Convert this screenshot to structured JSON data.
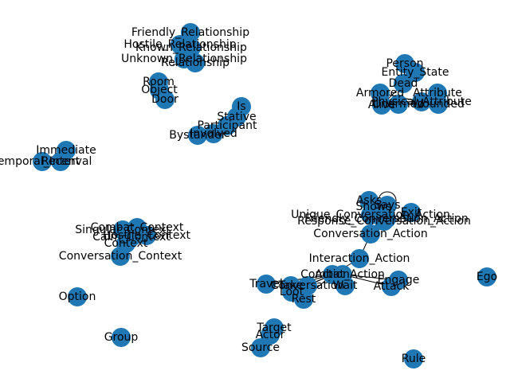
{
  "graph": {
    "node_color": "#1f77b4",
    "edge_color": "#000000",
    "nodes": [
      {
        "id": "friendly_relationship",
        "label": "Friendly_Relationship"
      },
      {
        "id": "hostile_relationship",
        "label": "Hostile_Relationship"
      },
      {
        "id": "known_relationship",
        "label": "Known_Relationship"
      },
      {
        "id": "unknown_relationship",
        "label": "Unknown_Relationship"
      },
      {
        "id": "relationship",
        "label": "Relationship"
      },
      {
        "id": "room",
        "label": "Room"
      },
      {
        "id": "object",
        "label": "Object"
      },
      {
        "id": "door",
        "label": "Door"
      },
      {
        "id": "is",
        "label": "Is"
      },
      {
        "id": "stative",
        "label": "Stative"
      },
      {
        "id": "participant",
        "label": "Participant"
      },
      {
        "id": "involved",
        "label": "Involved"
      },
      {
        "id": "bystander",
        "label": "Bystander"
      },
      {
        "id": "immediate",
        "label": "Immediate"
      },
      {
        "id": "temporal_interval",
        "label": "Temporal_Interval"
      },
      {
        "id": "recent",
        "label": "Recent"
      },
      {
        "id": "person",
        "label": "Person"
      },
      {
        "id": "entity_state",
        "label": "Entity_State"
      },
      {
        "id": "dead",
        "label": "Dead"
      },
      {
        "id": "armored",
        "label": "Armored"
      },
      {
        "id": "attribute",
        "label": "Attribute"
      },
      {
        "id": "physical_attribute",
        "label": "Physical_Attribute"
      },
      {
        "id": "alive",
        "label": "Alive"
      },
      {
        "id": "unarmed",
        "label": "Unarmed"
      },
      {
        "id": "wounded",
        "label": "Wounded"
      },
      {
        "id": "asks",
        "label": "Asks"
      },
      {
        "id": "says",
        "label": "Says"
      },
      {
        "id": "shows",
        "label": "Shows"
      },
      {
        "id": "exit",
        "label": "Exit"
      },
      {
        "id": "unique_conversation_action",
        "label": "Unique_Conversation_Action"
      },
      {
        "id": "friendly_conversation_action",
        "label": "Friendly_Conversation_Action"
      },
      {
        "id": "response_conversation_action",
        "label": "Response_Conversation_Action"
      },
      {
        "id": "conversation_action",
        "label": "Conversation_Action"
      },
      {
        "id": "interaction_action",
        "label": "Interaction_Action"
      },
      {
        "id": "combat_action",
        "label": "Combat_Action"
      },
      {
        "id": "action",
        "label": "Action"
      },
      {
        "id": "engage",
        "label": "Engage"
      },
      {
        "id": "attack",
        "label": "Attack"
      },
      {
        "id": "ego",
        "label": "Ego"
      },
      {
        "id": "singular_context",
        "label": "Singular_Context"
      },
      {
        "id": "combat_context",
        "label": "Combat_Context"
      },
      {
        "id": "hostile_context",
        "label": "Hostile_Context"
      },
      {
        "id": "calm_context",
        "label": "Calm_Context"
      },
      {
        "id": "context",
        "label": "Context"
      },
      {
        "id": "conversation_context",
        "label": "Conversation_Context"
      },
      {
        "id": "travel",
        "label": "Travel"
      },
      {
        "id": "take",
        "label": "Take"
      },
      {
        "id": "conversation",
        "label": "Conversation"
      },
      {
        "id": "loot",
        "label": "Loot"
      },
      {
        "id": "wait",
        "label": "Wait"
      },
      {
        "id": "rest",
        "label": "Rest"
      },
      {
        "id": "option",
        "label": "Option"
      },
      {
        "id": "group",
        "label": "Group"
      },
      {
        "id": "target",
        "label": "Target"
      },
      {
        "id": "actor",
        "label": "Actor"
      },
      {
        "id": "source",
        "label": "Source"
      },
      {
        "id": "rule",
        "label": "Rule"
      }
    ],
    "edges": [
      [
        "hostile_relationship",
        "relationship"
      ],
      [
        "friendly_relationship",
        "relationship"
      ],
      [
        "known_relationship",
        "relationship"
      ],
      [
        "unknown_relationship",
        "relationship"
      ],
      [
        "room",
        "object"
      ],
      [
        "door",
        "object"
      ],
      [
        "is",
        "stative"
      ],
      [
        "participant",
        "stative"
      ],
      [
        "involved",
        "participant"
      ],
      [
        "bystander",
        "participant"
      ],
      [
        "immediate",
        "temporal_interval"
      ],
      [
        "recent",
        "temporal_interval"
      ],
      [
        "person",
        "entity_state"
      ],
      [
        "dead",
        "entity_state"
      ],
      [
        "armored",
        "physical_attribute"
      ],
      [
        "attribute",
        "physical_attribute"
      ],
      [
        "alive",
        "entity_state"
      ],
      [
        "unarmed",
        "physical_attribute"
      ],
      [
        "wounded",
        "physical_attribute"
      ],
      [
        "asks",
        "conversation_action"
      ],
      [
        "says",
        "conversation_action"
      ],
      [
        "shows",
        "conversation_action"
      ],
      [
        "exit",
        "conversation_action"
      ],
      [
        "unique_conversation_action",
        "conversation_action"
      ],
      [
        "friendly_conversation_action",
        "conversation_action"
      ],
      [
        "response_conversation_action",
        "conversation_action"
      ],
      [
        "conversation_action",
        "interaction_action"
      ],
      [
        "interaction_action",
        "action"
      ],
      [
        "combat_action",
        "action"
      ],
      [
        "engage",
        "combat_action"
      ],
      [
        "attack",
        "combat_action"
      ],
      [
        "singular_context",
        "context"
      ],
      [
        "combat_context",
        "context"
      ],
      [
        "hostile_context",
        "context"
      ],
      [
        "calm_context",
        "context"
      ],
      [
        "conversation_context",
        "context"
      ],
      [
        "travel",
        "action"
      ],
      [
        "take",
        "action"
      ],
      [
        "conversation",
        "action"
      ],
      [
        "loot",
        "action"
      ],
      [
        "wait",
        "action"
      ],
      [
        "rest",
        "action"
      ],
      [
        "target",
        "actor"
      ],
      [
        "source",
        "actor"
      ]
    ]
  }
}
